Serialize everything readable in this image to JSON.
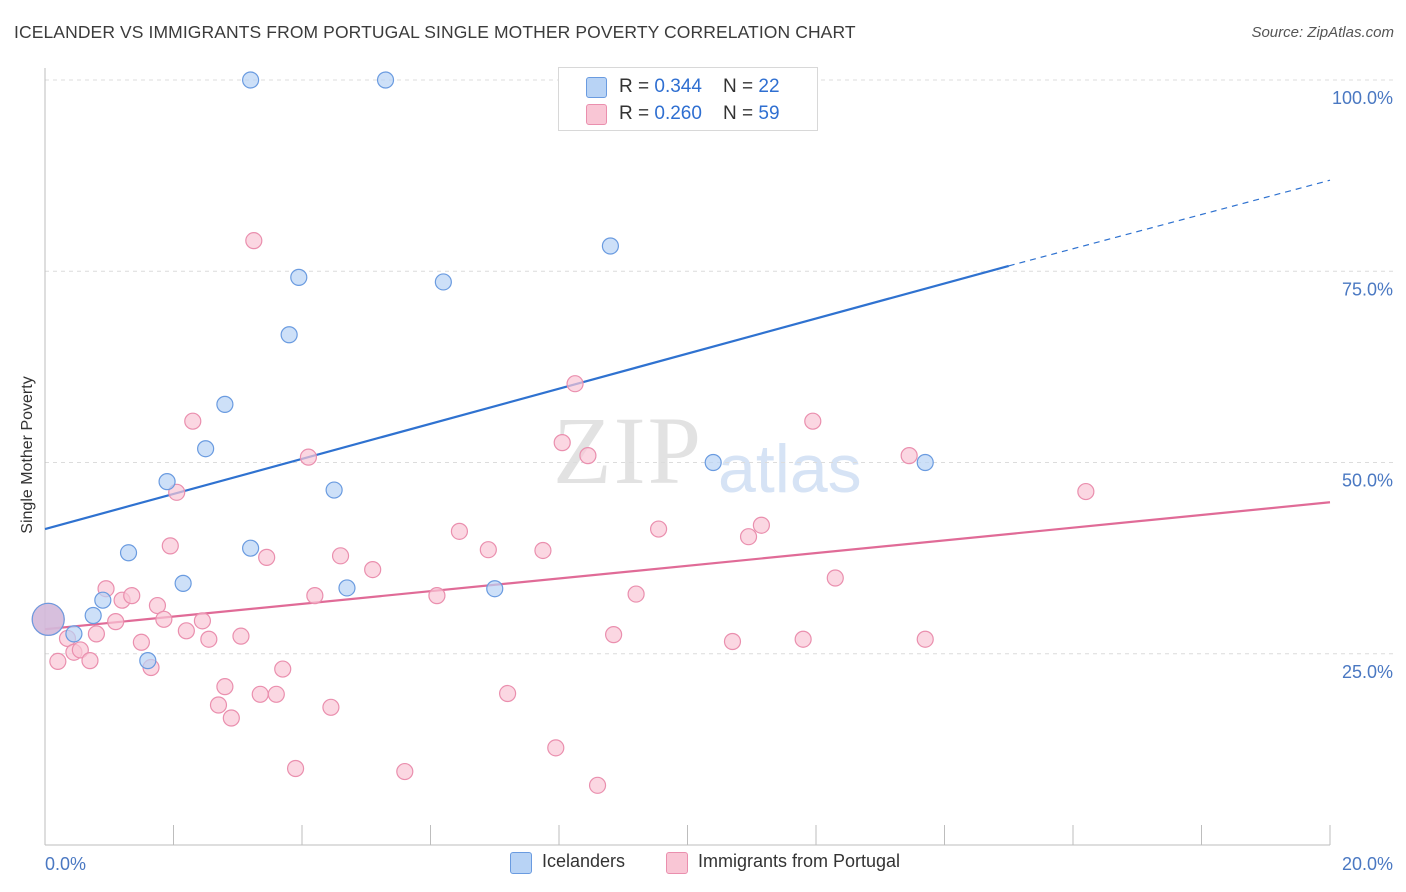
{
  "title": "ICELANDER VS IMMIGRANTS FROM PORTUGAL SINGLE MOTHER POVERTY CORRELATION CHART",
  "source": "Source: ZipAtlas.com",
  "watermark": {
    "zip": "ZIP",
    "atlas": "atlas"
  },
  "legend": {
    "rows": [
      {
        "r_label": "R = ",
        "r_value": "0.344",
        "n_label": "N = ",
        "n_value": "22"
      },
      {
        "r_label": "R = ",
        "r_value": "0.260",
        "n_label": "N = ",
        "n_value": "59"
      }
    ]
  },
  "bottom_legend": {
    "icelanders": "Icelanders",
    "portugal": "Immigrants from Portugal"
  },
  "colors": {
    "blue_fill": "#b8d3f5",
    "blue_stroke": "#6a9be0",
    "blue_line": "#2f72d0",
    "pink_fill": "#f9c6d5",
    "pink_stroke": "#ea8fae",
    "pink_line": "#e06b97",
    "tick_text": "#4a78c2",
    "grid": "#dcdcdc"
  },
  "chart_data": {
    "type": "scatter",
    "title": "ICELANDER VS IMMIGRANTS FROM PORTUGAL SINGLE MOTHER POVERTY CORRELATION CHART",
    "xlabel": "",
    "ylabel": "Single Mother Poverty",
    "xlim": [
      0,
      20
    ],
    "ylim": [
      0,
      100
    ],
    "x_tick_labels": [
      "0.0%",
      "20.0%"
    ],
    "y_ticks": [
      25,
      50,
      75,
      100
    ],
    "y_tick_labels": [
      "25.0%",
      "50.0%",
      "75.0%",
      "100.0%"
    ],
    "grid": "horizontal dashed",
    "legend_position": "top-center",
    "series": [
      {
        "name": "Icelanders",
        "R": 0.344,
        "N": 22,
        "points": [
          [
            0.05,
            29.5
          ],
          [
            0.45,
            27.6
          ],
          [
            0.75,
            30.0
          ],
          [
            0.9,
            32.0
          ],
          [
            1.3,
            38.2
          ],
          [
            1.6,
            24.1
          ],
          [
            1.9,
            47.5
          ],
          [
            2.15,
            34.2
          ],
          [
            2.5,
            51.8
          ],
          [
            2.8,
            57.6
          ],
          [
            3.2,
            100.0
          ],
          [
            3.2,
            38.8
          ],
          [
            3.8,
            66.7
          ],
          [
            3.95,
            74.2
          ],
          [
            4.5,
            46.4
          ],
          [
            4.7,
            33.6
          ],
          [
            5.3,
            100.0
          ],
          [
            6.2,
            73.6
          ],
          [
            7.0,
            33.5
          ],
          [
            8.8,
            78.3
          ],
          [
            10.4,
            50.0
          ],
          [
            13.7,
            50.0
          ]
        ],
        "trend": {
          "x": [
            0,
            15.0
          ],
          "y": [
            41.3,
            75.7
          ],
          "dashed_to": [
            20,
            86.9
          ]
        }
      },
      {
        "name": "Immigrants from Portugal",
        "R": 0.26,
        "N": 59,
        "points": [
          [
            0.05,
            29.5
          ],
          [
            0.2,
            24.0
          ],
          [
            0.35,
            27.0
          ],
          [
            0.45,
            25.2
          ],
          [
            0.55,
            25.5
          ],
          [
            0.7,
            24.1
          ],
          [
            0.8,
            27.6
          ],
          [
            0.95,
            33.5
          ],
          [
            1.1,
            29.2
          ],
          [
            1.2,
            32.0
          ],
          [
            1.35,
            32.6
          ],
          [
            1.5,
            26.5
          ],
          [
            1.65,
            23.2
          ],
          [
            1.75,
            31.3
          ],
          [
            1.85,
            29.5
          ],
          [
            1.95,
            39.1
          ],
          [
            2.05,
            46.1
          ],
          [
            2.2,
            28.0
          ],
          [
            2.3,
            55.4
          ],
          [
            2.45,
            29.3
          ],
          [
            2.55,
            26.9
          ],
          [
            2.7,
            18.3
          ],
          [
            2.8,
            20.7
          ],
          [
            2.9,
            16.6
          ],
          [
            3.05,
            27.3
          ],
          [
            3.25,
            79.0
          ],
          [
            3.35,
            19.7
          ],
          [
            3.45,
            37.6
          ],
          [
            3.6,
            19.7
          ],
          [
            3.7,
            23.0
          ],
          [
            3.9,
            10.0
          ],
          [
            4.1,
            50.7
          ],
          [
            4.2,
            32.6
          ],
          [
            4.45,
            18.0
          ],
          [
            4.6,
            37.8
          ],
          [
            5.1,
            36.0
          ],
          [
            5.6,
            9.6
          ],
          [
            6.1,
            32.6
          ],
          [
            6.45,
            41.0
          ],
          [
            6.9,
            38.6
          ],
          [
            7.2,
            19.8
          ],
          [
            7.75,
            38.5
          ],
          [
            7.95,
            12.7
          ],
          [
            8.05,
            52.6
          ],
          [
            8.25,
            60.3
          ],
          [
            8.45,
            50.9
          ],
          [
            8.6,
            7.8
          ],
          [
            8.85,
            27.5
          ],
          [
            9.2,
            32.8
          ],
          [
            9.55,
            41.3
          ],
          [
            10.7,
            26.6
          ],
          [
            10.95,
            40.3
          ],
          [
            11.15,
            41.8
          ],
          [
            11.8,
            26.9
          ],
          [
            11.95,
            55.4
          ],
          [
            12.3,
            34.9
          ],
          [
            13.45,
            50.9
          ],
          [
            13.7,
            26.9
          ],
          [
            16.2,
            46.2
          ]
        ],
        "trend": {
          "x": [
            0,
            20
          ],
          "y": [
            28.2,
            44.8
          ]
        }
      }
    ]
  }
}
